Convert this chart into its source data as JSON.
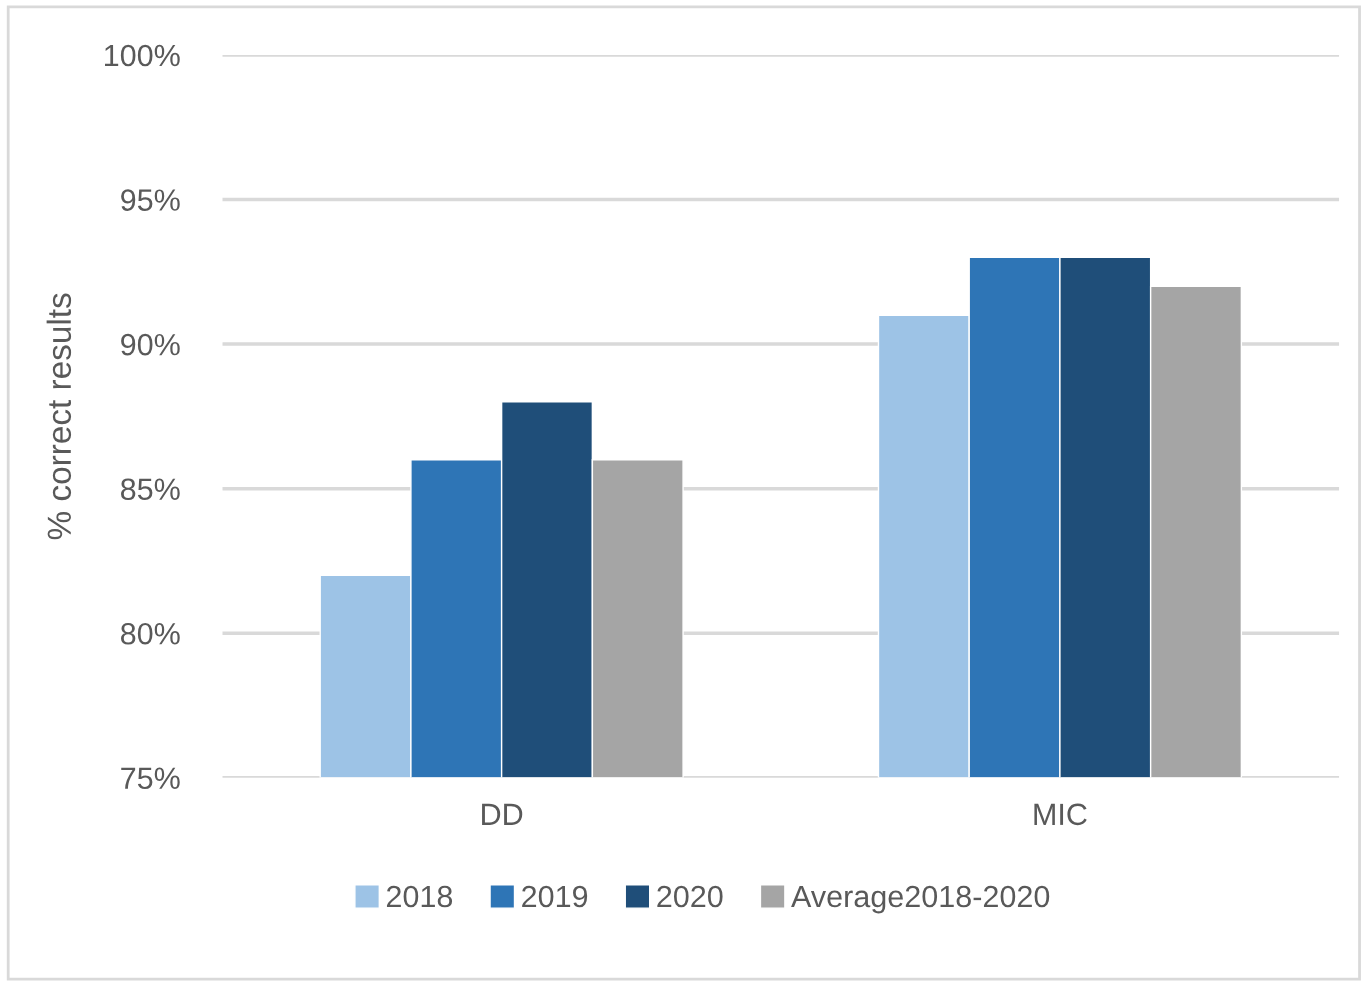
{
  "chart_data": {
    "type": "bar",
    "ylabel": "% correct results",
    "categories": [
      "DD",
      "MIC"
    ],
    "series": [
      {
        "name": "2018",
        "color": "#9dc3e6",
        "values": [
          82,
          91
        ]
      },
      {
        "name": "2019",
        "color": "#2e75b6",
        "values": [
          86,
          93
        ]
      },
      {
        "name": "2020",
        "color": "#1f4e79",
        "values": [
          88,
          93
        ]
      },
      {
        "name": "Average2018-2020",
        "color": "#a5a5a5",
        "values": [
          86,
          92
        ]
      }
    ],
    "ylim": [
      75,
      100
    ],
    "yticks": [
      {
        "value": 75,
        "label": "75%"
      },
      {
        "value": 80,
        "label": "80%"
      },
      {
        "value": 85,
        "label": "85%"
      },
      {
        "value": 90,
        "label": "90%"
      },
      {
        "value": 95,
        "label": "95%"
      },
      {
        "value": 100,
        "label": "100%"
      }
    ],
    "grid": "y",
    "legend": "bottom"
  }
}
